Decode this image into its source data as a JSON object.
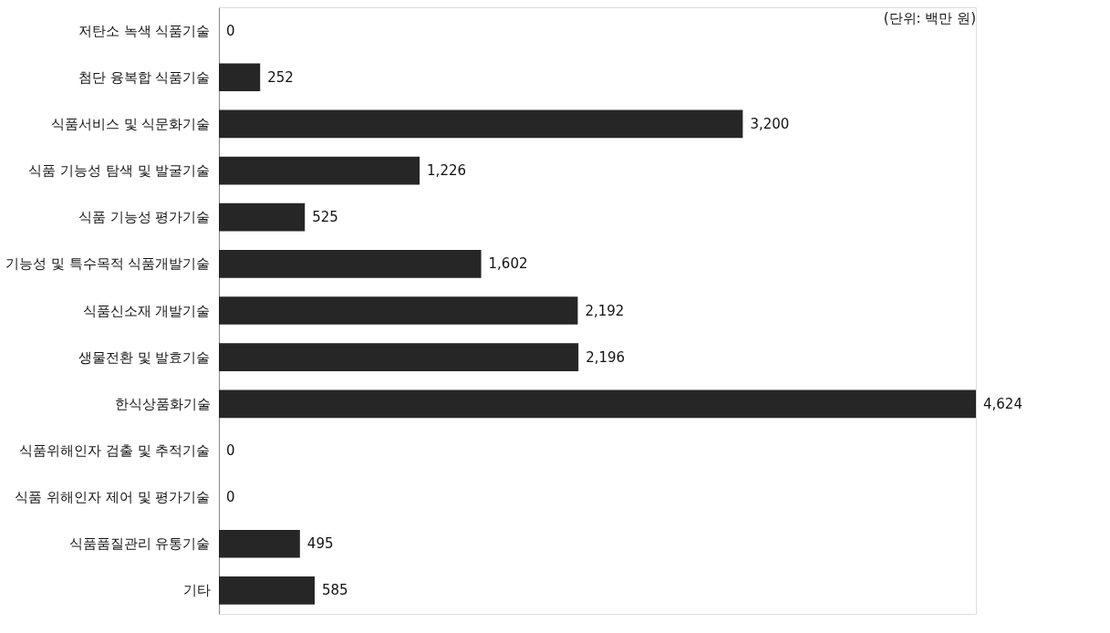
{
  "chart_data": {
    "type": "bar",
    "orientation": "horizontal",
    "value_labels": [
      "0",
      "252",
      "3,200",
      "1,226",
      "525",
      "1,602",
      "2,192",
      "2,196",
      "4,624",
      "0",
      "0",
      "495",
      "585"
    ],
    "categories": [
      "저탄소 녹색 식품기술",
      "첨단 융복합 식품기술",
      "식품서비스 및 식문화기술",
      "식품 기능성 탐색 및 발굴기술",
      "식품 기능성 평가기술",
      "기능성 및 특수목적 식품개발기술",
      "식품신소재 개발기술",
      "생물전환 및 발효기술",
      "한식상품화기술",
      "식품위해인자 검출 및 추적기술",
      "식품 위해인자 제어 및 평가기술",
      "식품품질관리 유통기술",
      "기타"
    ],
    "values": [
      0,
      252,
      3200,
      1226,
      525,
      1602,
      2192,
      2196,
      4624,
      0,
      0,
      495,
      585
    ],
    "color": "#262626",
    "annotations": [
      "(단위: 백만 원)"
    ]
  }
}
